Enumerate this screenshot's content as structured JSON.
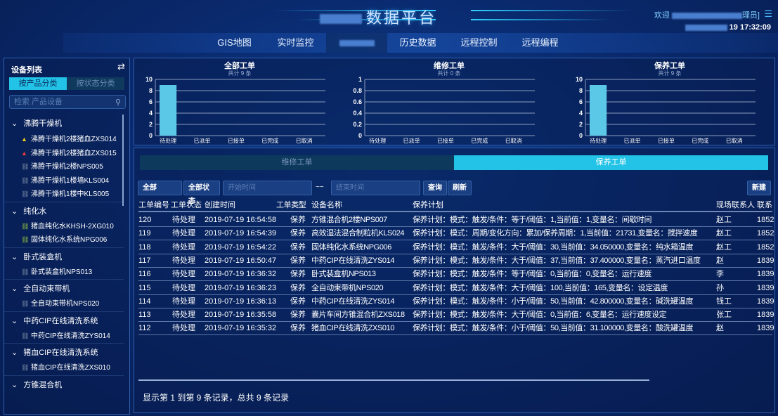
{
  "header": {
    "title": "数据平台",
    "welcome": "欢迎",
    "role_suffix": "理员]",
    "time": "17:32:09",
    "date_suffix": "19"
  },
  "nav": [
    "GIS地图",
    "实时监控",
    "",
    "历史数据",
    "远程控制",
    "远程编程"
  ],
  "sidebar": {
    "title": "设备列表",
    "tabs": [
      "按产品分类",
      "按状态分类"
    ],
    "search_placeholder": "检索 产品设备",
    "groups": [
      {
        "name": "沸腾干燥机",
        "items": [
          {
            "label": "沸腾干燥机2楼猪血ZXS014",
            "icon": "warning-yellow"
          },
          {
            "label": "沸腾干燥机2楼猪血ZXS015",
            "icon": "warning-red"
          },
          {
            "label": "沸腾干燥机2楼NPS005",
            "icon": "link-broken"
          },
          {
            "label": "沸腾干燥机1楼墙KLS004",
            "icon": "link-broken"
          },
          {
            "label": "沸腾干燥机1楼中KLS005",
            "icon": "link-broken"
          }
        ]
      },
      {
        "name": "纯化水",
        "items": [
          {
            "label": "猪血纯化水KHSH-2XG010",
            "icon": "link-green"
          },
          {
            "label": "固体纯化水系统NPG006",
            "icon": "link-green"
          }
        ]
      },
      {
        "name": "卧式装盒机",
        "items": [
          {
            "label": "卧式装盒机NPS013",
            "icon": "link-broken"
          }
        ]
      },
      {
        "name": "全自动束带机",
        "items": [
          {
            "label": "全自动束带机NPS020",
            "icon": "link-broken"
          }
        ]
      },
      {
        "name": "中药CIP在线清洗系统",
        "items": [
          {
            "label": "中药CIP在线清洗ZYS014",
            "icon": "link-broken"
          }
        ]
      },
      {
        "name": "猪血CIP在线清洗系统",
        "items": [
          {
            "label": "猪血CIP在线清洗ZXS010",
            "icon": "link-broken"
          }
        ]
      },
      {
        "name": "方锥混合机",
        "items": []
      }
    ]
  },
  "chart_data": [
    {
      "type": "bar",
      "title": "全部工单",
      "subtitle": "共计 9 条",
      "categories": [
        "待处理",
        "已派单",
        "已接单",
        "已完成",
        "已取消"
      ],
      "values": [
        9,
        0,
        0,
        0,
        0
      ],
      "ylim": [
        0,
        10
      ],
      "yticks": [
        "0",
        "2",
        "4",
        "6",
        "8",
        "10"
      ],
      "grid": true,
      "color": "#5bc8e8"
    },
    {
      "type": "bar",
      "title": "维修工单",
      "subtitle": "共计 0 条",
      "categories": [
        "待处理",
        "已派单",
        "已接单",
        "已完成",
        "已取消"
      ],
      "values": [
        0,
        0,
        0,
        0,
        0
      ],
      "ylim": [
        0,
        1
      ],
      "yticks": [
        "0",
        "0.2",
        "0.4",
        "0.6",
        "0.8",
        "1"
      ],
      "grid": true,
      "color": "#5bc8e8"
    },
    {
      "type": "bar",
      "title": "保养工单",
      "subtitle": "共计 9 条",
      "categories": [
        "待处理",
        "已派单",
        "已接单",
        "已完成",
        "已取消"
      ],
      "values": [
        9,
        0,
        0,
        0,
        0
      ],
      "ylim": [
        0,
        10
      ],
      "yticks": [
        "0",
        "2",
        "4",
        "6",
        "8",
        "10"
      ],
      "grid": true,
      "color": "#5bc8e8"
    }
  ],
  "main": {
    "tabs": [
      "维修工单",
      "保养工单"
    ],
    "active_tab": 1,
    "toolbar": {
      "type": "全部",
      "status": "全部状态",
      "start_placeholder": "开始时间",
      "sep": "~~",
      "end_placeholder": "结束时间",
      "query": "查询",
      "refresh": "刷新",
      "new": "新建"
    },
    "columns": [
      "工单编号",
      "工单状态",
      "创建时间",
      "工单类型",
      "设备名称",
      "保养计划",
      "现场联系人",
      "联系"
    ],
    "rows": [
      [
        "120",
        "待处理",
        "2019-07-19 16:54:58",
        "保养",
        "方锥混合机2楼NPS007",
        "保养计划：模式：触发/条件：等于/阈值：1,当前值：1,变量名：间歇时间",
        "赵工",
        "1852"
      ],
      [
        "119",
        "待处理",
        "2019-07-19 16:54:39",
        "保养",
        "高效湿法混合制粒机KLS024",
        "保养计划：模式：周期/变化方向：累加/保养周期：1,当前值：21731,变量名：搅拌速度",
        "赵工",
        "1852"
      ],
      [
        "118",
        "待处理",
        "2019-07-19 16:54:22",
        "保养",
        "固体纯化水系统NPG006",
        "保养计划：模式：触发/条件：大于/阈值：30,当前值：34.050000,变量名：纯水箱温度",
        "赵工",
        "1852"
      ],
      [
        "117",
        "待处理",
        "2019-07-19 16:50:47",
        "保养",
        "中药CIP在线清洗ZYS014",
        "保养计划：模式：触发/条件：大于/阈值：37,当前值：37.400000,变量名：蒸汽进口温度",
        "赵",
        "1839"
      ],
      [
        "116",
        "待处理",
        "2019-07-19 16:36:32",
        "保养",
        "卧式装盒机NPS013",
        "保养计划：模式：触发/条件：等于/阈值：0,当前值：0,变量名：运行速度",
        "李",
        "1839"
      ],
      [
        "115",
        "待处理",
        "2019-07-19 16:36:23",
        "保养",
        "全自动束带机NPS020",
        "保养计划：模式：触发/条件：大于/阈值：100,当前值：165,变量名：设定温度",
        "孙",
        "1839"
      ],
      [
        "114",
        "待处理",
        "2019-07-19 16:36:13",
        "保养",
        "中药CIP在线清洗ZYS014",
        "保养计划：模式：触发/条件：小于/阈值：50,当前值：42.800000,变量名：碱洗罐温度",
        "钱工",
        "1839"
      ],
      [
        "113",
        "待处理",
        "2019-07-19 16:35:58",
        "保养",
        "囊片车间方锥混合机ZXS018",
        "保养计划：模式：触发/条件：大于/阈值：0,当前值：6,变量名：运行速度设定",
        "张工",
        "1839"
      ],
      [
        "112",
        "待处理",
        "2019-07-19 16:35:32",
        "保养",
        "猪血CIP在线清洗ZXS010",
        "保养计划：模式：触发/条件：小于/阈值：50,当前值：31.100000,变量名：酸洗罐温度",
        "赵",
        "1839"
      ]
    ],
    "footer": "显示第 1 到第 9 条记录，总共 9 条记录"
  },
  "colors": {
    "accent": "#22c3e6",
    "bar": "#5bc8e8",
    "warning_yellow": "#e6c619",
    "warning_red": "#e23a3a",
    "link_green": "#9ccf3a"
  }
}
